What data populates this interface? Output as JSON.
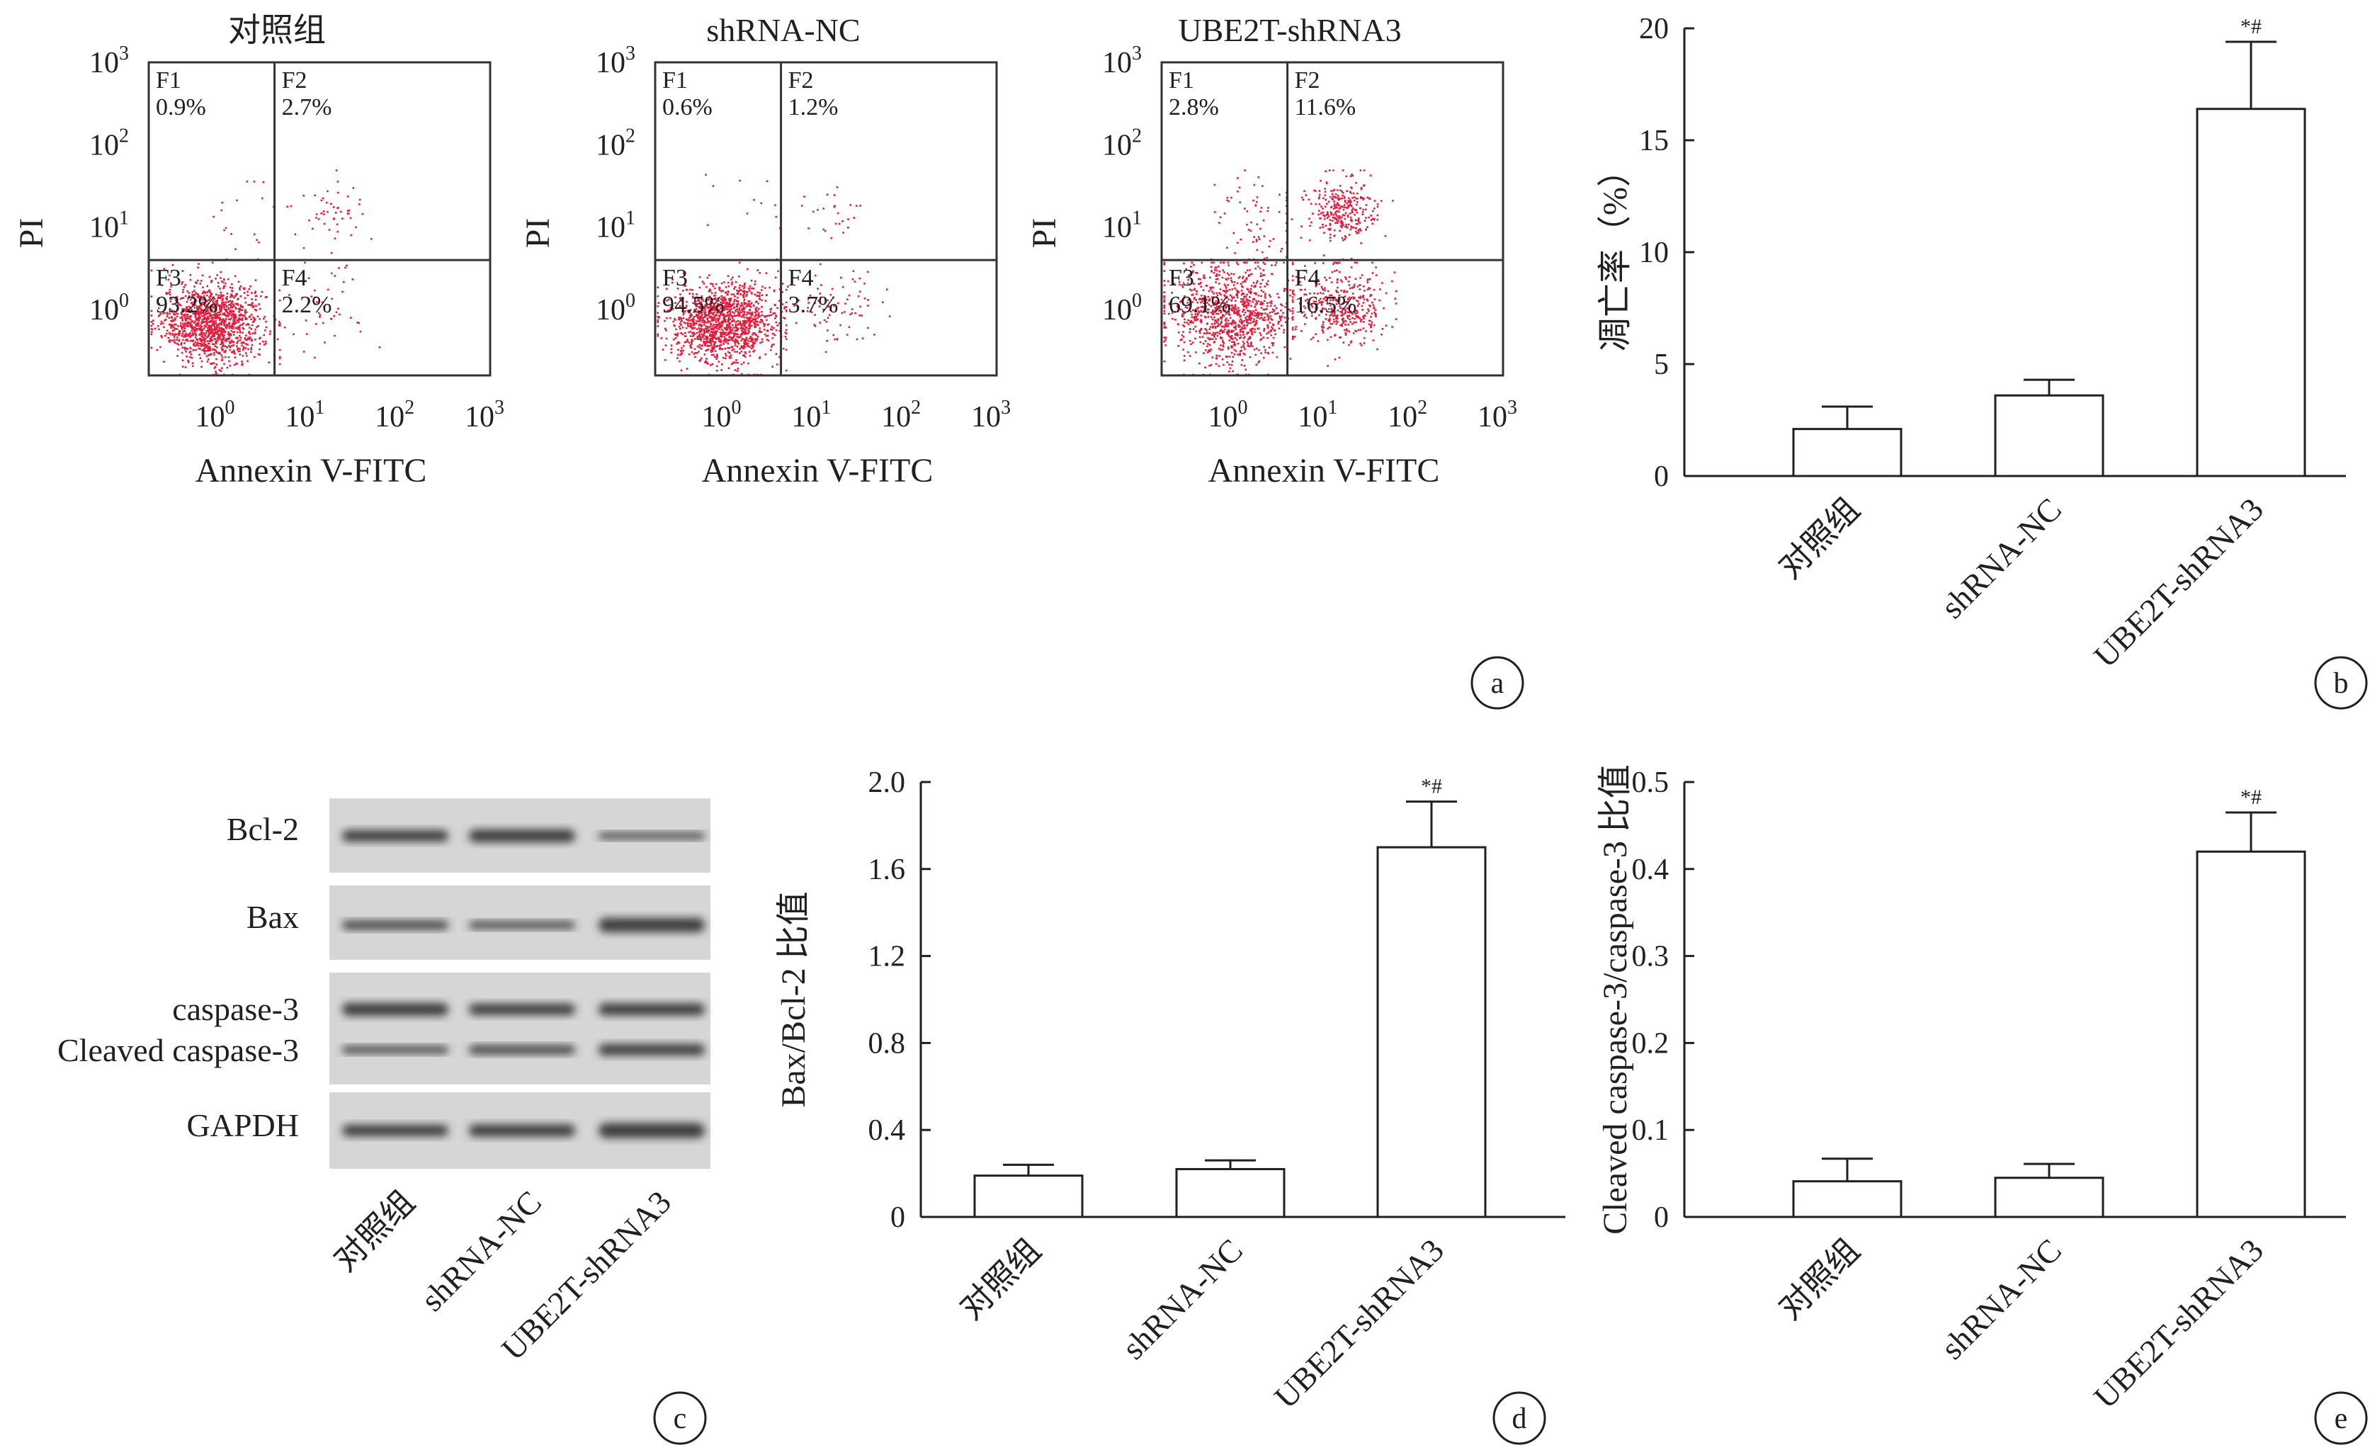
{
  "chart_data": [
    {
      "panel": "a",
      "type": "scatter",
      "ylabel": "PI",
      "xlabel": "Annexin V-FITC",
      "tick_base": "10",
      "tick_exponents": [
        "0",
        "1",
        "2",
        "3"
      ],
      "scale": "log",
      "x_range_decades": [
        -0.8,
        3
      ],
      "y_range_decades": [
        -0.8,
        3
      ],
      "gate": {
        "x": 0.6,
        "y": 0.6
      },
      "plots": [
        {
          "title": "对照组",
          "dot_color": "#e41d3c",
          "quadrants": [
            {
              "name": "F1",
              "value": "0.9%"
            },
            {
              "name": "F2",
              "value": "2.7%"
            },
            {
              "name": "F3",
              "value": "93.2%"
            },
            {
              "name": "F4",
              "value": "2.2%"
            }
          ]
        },
        {
          "title": "shRNA-NC",
          "dot_color": "#e41d3c",
          "quadrants": [
            {
              "name": "F1",
              "value": "0.6%"
            },
            {
              "name": "F2",
              "value": "1.2%"
            },
            {
              "name": "F3",
              "value": "94.5%"
            },
            {
              "name": "F4",
              "value": "3.7%"
            }
          ]
        },
        {
          "title": "UBE2T-shRNA3",
          "dot_color": "#e41d3c",
          "quadrants": [
            {
              "name": "F1",
              "value": "2.8%"
            },
            {
              "name": "F2",
              "value": "11.6%"
            },
            {
              "name": "F3",
              "value": "69.1%"
            },
            {
              "name": "F4",
              "value": "16.5%"
            }
          ]
        }
      ]
    },
    {
      "panel": "b",
      "type": "bar",
      "categories": [
        "对照组",
        "shRNA-NC",
        "UBE2T-shRNA3"
      ],
      "values": [
        2.1,
        3.6,
        16.4
      ],
      "errors": [
        1.0,
        0.7,
        3.0
      ],
      "annotations": [
        "",
        "",
        "*#"
      ],
      "ylabel": "凋亡率（%）",
      "ylim": [
        0,
        20
      ],
      "yticks": [
        "0",
        "5",
        "10",
        "15",
        "20"
      ]
    },
    {
      "panel": "c",
      "type": "western-blot",
      "bands": [
        "Bcl-2",
        "Bax",
        "caspase-3",
        "Cleaved caspase-3",
        "GAPDH"
      ],
      "lanes": [
        "对照组",
        "shRNA-NC",
        "UBE2T-shRNA3"
      ]
    },
    {
      "panel": "d",
      "type": "bar",
      "categories": [
        "对照组",
        "shRNA-NC",
        "UBE2T-shRNA3"
      ],
      "values": [
        0.19,
        0.22,
        1.7
      ],
      "errors": [
        0.05,
        0.04,
        0.21
      ],
      "annotations": [
        "",
        "",
        "*#"
      ],
      "ylabel": "Bax/Bcl-2 比值",
      "ylim": [
        0,
        2.0
      ],
      "yticks": [
        "0",
        "0.4",
        "0.8",
        "1.2",
        "1.6",
        "2.0"
      ]
    },
    {
      "panel": "e",
      "type": "bar",
      "categories": [
        "对照组",
        "shRNA-NC",
        "UBE2T-shRNA3"
      ],
      "values": [
        0.041,
        0.045,
        0.42
      ],
      "errors": [
        0.026,
        0.016,
        0.045
      ],
      "annotations": [
        "",
        "",
        "*#"
      ],
      "ylabel": "Cleaved caspase-3/caspase-3 比值",
      "ylim": [
        0,
        0.5
      ],
      "yticks": [
        "0",
        "0.1",
        "0.2",
        "0.3",
        "0.4",
        "0.5"
      ]
    }
  ],
  "panel_labels": [
    "a",
    "b",
    "c",
    "d",
    "e"
  ]
}
